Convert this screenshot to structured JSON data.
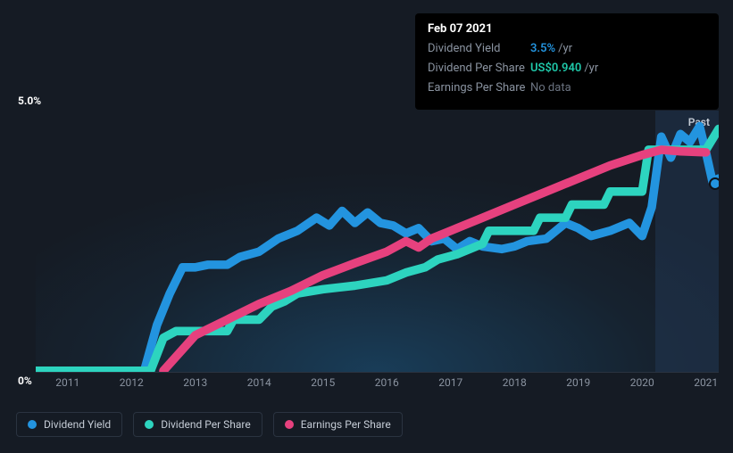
{
  "tooltip": {
    "date": "Feb 07 2021",
    "rows": [
      {
        "label": "Dividend Yield",
        "value": "3.5%",
        "unit": "/yr",
        "cls": "accent"
      },
      {
        "label": "Dividend Per Share",
        "value": "US$0.940",
        "unit": "/yr",
        "cls": "money"
      },
      {
        "label": "Earnings Per Share",
        "value": "No data",
        "unit": "",
        "cls": "muted"
      }
    ]
  },
  "chart": {
    "type": "line",
    "y_top_label": "5.0%",
    "y_bot_label": "0%",
    "ylim": [
      0,
      5
    ],
    "xlim": [
      2010.5,
      2021.2
    ],
    "past_label": "Past",
    "past_band_from": 2020.2,
    "background_color": "#151b24",
    "grid_color": "#2a3340",
    "x_ticks": [
      2011,
      2012,
      2013,
      2014,
      2015,
      2016,
      2017,
      2018,
      2019,
      2020,
      2021
    ],
    "series": [
      {
        "name": "Dividend Yield",
        "color": "#2394df",
        "line_width": 3,
        "points": [
          [
            2010.5,
            0.02
          ],
          [
            2012.2,
            0.02
          ],
          [
            2012.4,
            0.9
          ],
          [
            2012.6,
            1.5
          ],
          [
            2012.8,
            2.0
          ],
          [
            2013.0,
            2.0
          ],
          [
            2013.2,
            2.05
          ],
          [
            2013.5,
            2.05
          ],
          [
            2013.7,
            2.2
          ],
          [
            2014.0,
            2.3
          ],
          [
            2014.3,
            2.55
          ],
          [
            2014.6,
            2.7
          ],
          [
            2014.9,
            2.95
          ],
          [
            2015.1,
            2.8
          ],
          [
            2015.3,
            3.08
          ],
          [
            2015.5,
            2.85
          ],
          [
            2015.7,
            3.05
          ],
          [
            2015.9,
            2.85
          ],
          [
            2016.1,
            2.8
          ],
          [
            2016.3,
            2.65
          ],
          [
            2016.5,
            2.75
          ],
          [
            2016.7,
            2.5
          ],
          [
            2016.9,
            2.55
          ],
          [
            2017.1,
            2.35
          ],
          [
            2017.3,
            2.5
          ],
          [
            2017.5,
            2.4
          ],
          [
            2017.8,
            2.35
          ],
          [
            2018.0,
            2.4
          ],
          [
            2018.2,
            2.5
          ],
          [
            2018.5,
            2.55
          ],
          [
            2018.8,
            2.85
          ],
          [
            2019.0,
            2.75
          ],
          [
            2019.2,
            2.6
          ],
          [
            2019.5,
            2.7
          ],
          [
            2019.8,
            2.85
          ],
          [
            2020.0,
            2.6
          ],
          [
            2020.15,
            3.15
          ],
          [
            2020.3,
            4.5
          ],
          [
            2020.45,
            4.1
          ],
          [
            2020.6,
            4.55
          ],
          [
            2020.75,
            4.4
          ],
          [
            2020.9,
            4.7
          ],
          [
            2021.0,
            4.2
          ],
          [
            2021.1,
            3.65
          ],
          [
            2021.2,
            3.7
          ]
        ],
        "marker": {
          "x": 2021.15,
          "y": 3.6
        }
      },
      {
        "name": "Dividend Per Share",
        "color": "#2dd4bf",
        "line_width": 3,
        "points": [
          [
            2010.5,
            0.02
          ],
          [
            2012.3,
            0.02
          ],
          [
            2012.5,
            0.65
          ],
          [
            2012.7,
            0.78
          ],
          [
            2013.5,
            0.78
          ],
          [
            2013.6,
            1.0
          ],
          [
            2014.0,
            1.0
          ],
          [
            2014.2,
            1.25
          ],
          [
            2014.4,
            1.35
          ],
          [
            2014.6,
            1.5
          ],
          [
            2015.0,
            1.58
          ],
          [
            2015.5,
            1.65
          ],
          [
            2016.0,
            1.75
          ],
          [
            2016.3,
            1.9
          ],
          [
            2016.6,
            2.0
          ],
          [
            2016.8,
            2.15
          ],
          [
            2017.1,
            2.25
          ],
          [
            2017.5,
            2.45
          ],
          [
            2017.6,
            2.7
          ],
          [
            2018.3,
            2.7
          ],
          [
            2018.4,
            2.95
          ],
          [
            2018.8,
            2.95
          ],
          [
            2018.9,
            3.2
          ],
          [
            2019.4,
            3.2
          ],
          [
            2019.5,
            3.45
          ],
          [
            2020.0,
            3.45
          ],
          [
            2020.1,
            4.25
          ],
          [
            2021.0,
            4.25
          ],
          [
            2021.2,
            4.65
          ]
        ]
      },
      {
        "name": "Earnings Per Share",
        "color": "#e6417e",
        "line_width": 3,
        "points": [
          [
            2012.5,
            0.02
          ],
          [
            2013.0,
            0.7
          ],
          [
            2013.5,
            1.0
          ],
          [
            2014.0,
            1.3
          ],
          [
            2014.5,
            1.55
          ],
          [
            2015.0,
            1.85
          ],
          [
            2015.5,
            2.08
          ],
          [
            2016.0,
            2.3
          ],
          [
            2016.3,
            2.5
          ],
          [
            2016.5,
            2.38
          ],
          [
            2016.7,
            2.55
          ],
          [
            2017.0,
            2.7
          ],
          [
            2017.5,
            2.95
          ],
          [
            2018.0,
            3.2
          ],
          [
            2018.5,
            3.45
          ],
          [
            2019.0,
            3.7
          ],
          [
            2019.5,
            3.95
          ],
          [
            2020.0,
            4.15
          ],
          [
            2020.3,
            4.25
          ],
          [
            2020.6,
            4.22
          ],
          [
            2021.0,
            4.2
          ]
        ]
      }
    ]
  },
  "legend_items": [
    {
      "label": "Dividend Yield",
      "color": "#2394df"
    },
    {
      "label": "Dividend Per Share",
      "color": "#2dd4bf"
    },
    {
      "label": "Earnings Per Share",
      "color": "#e6417e"
    }
  ]
}
